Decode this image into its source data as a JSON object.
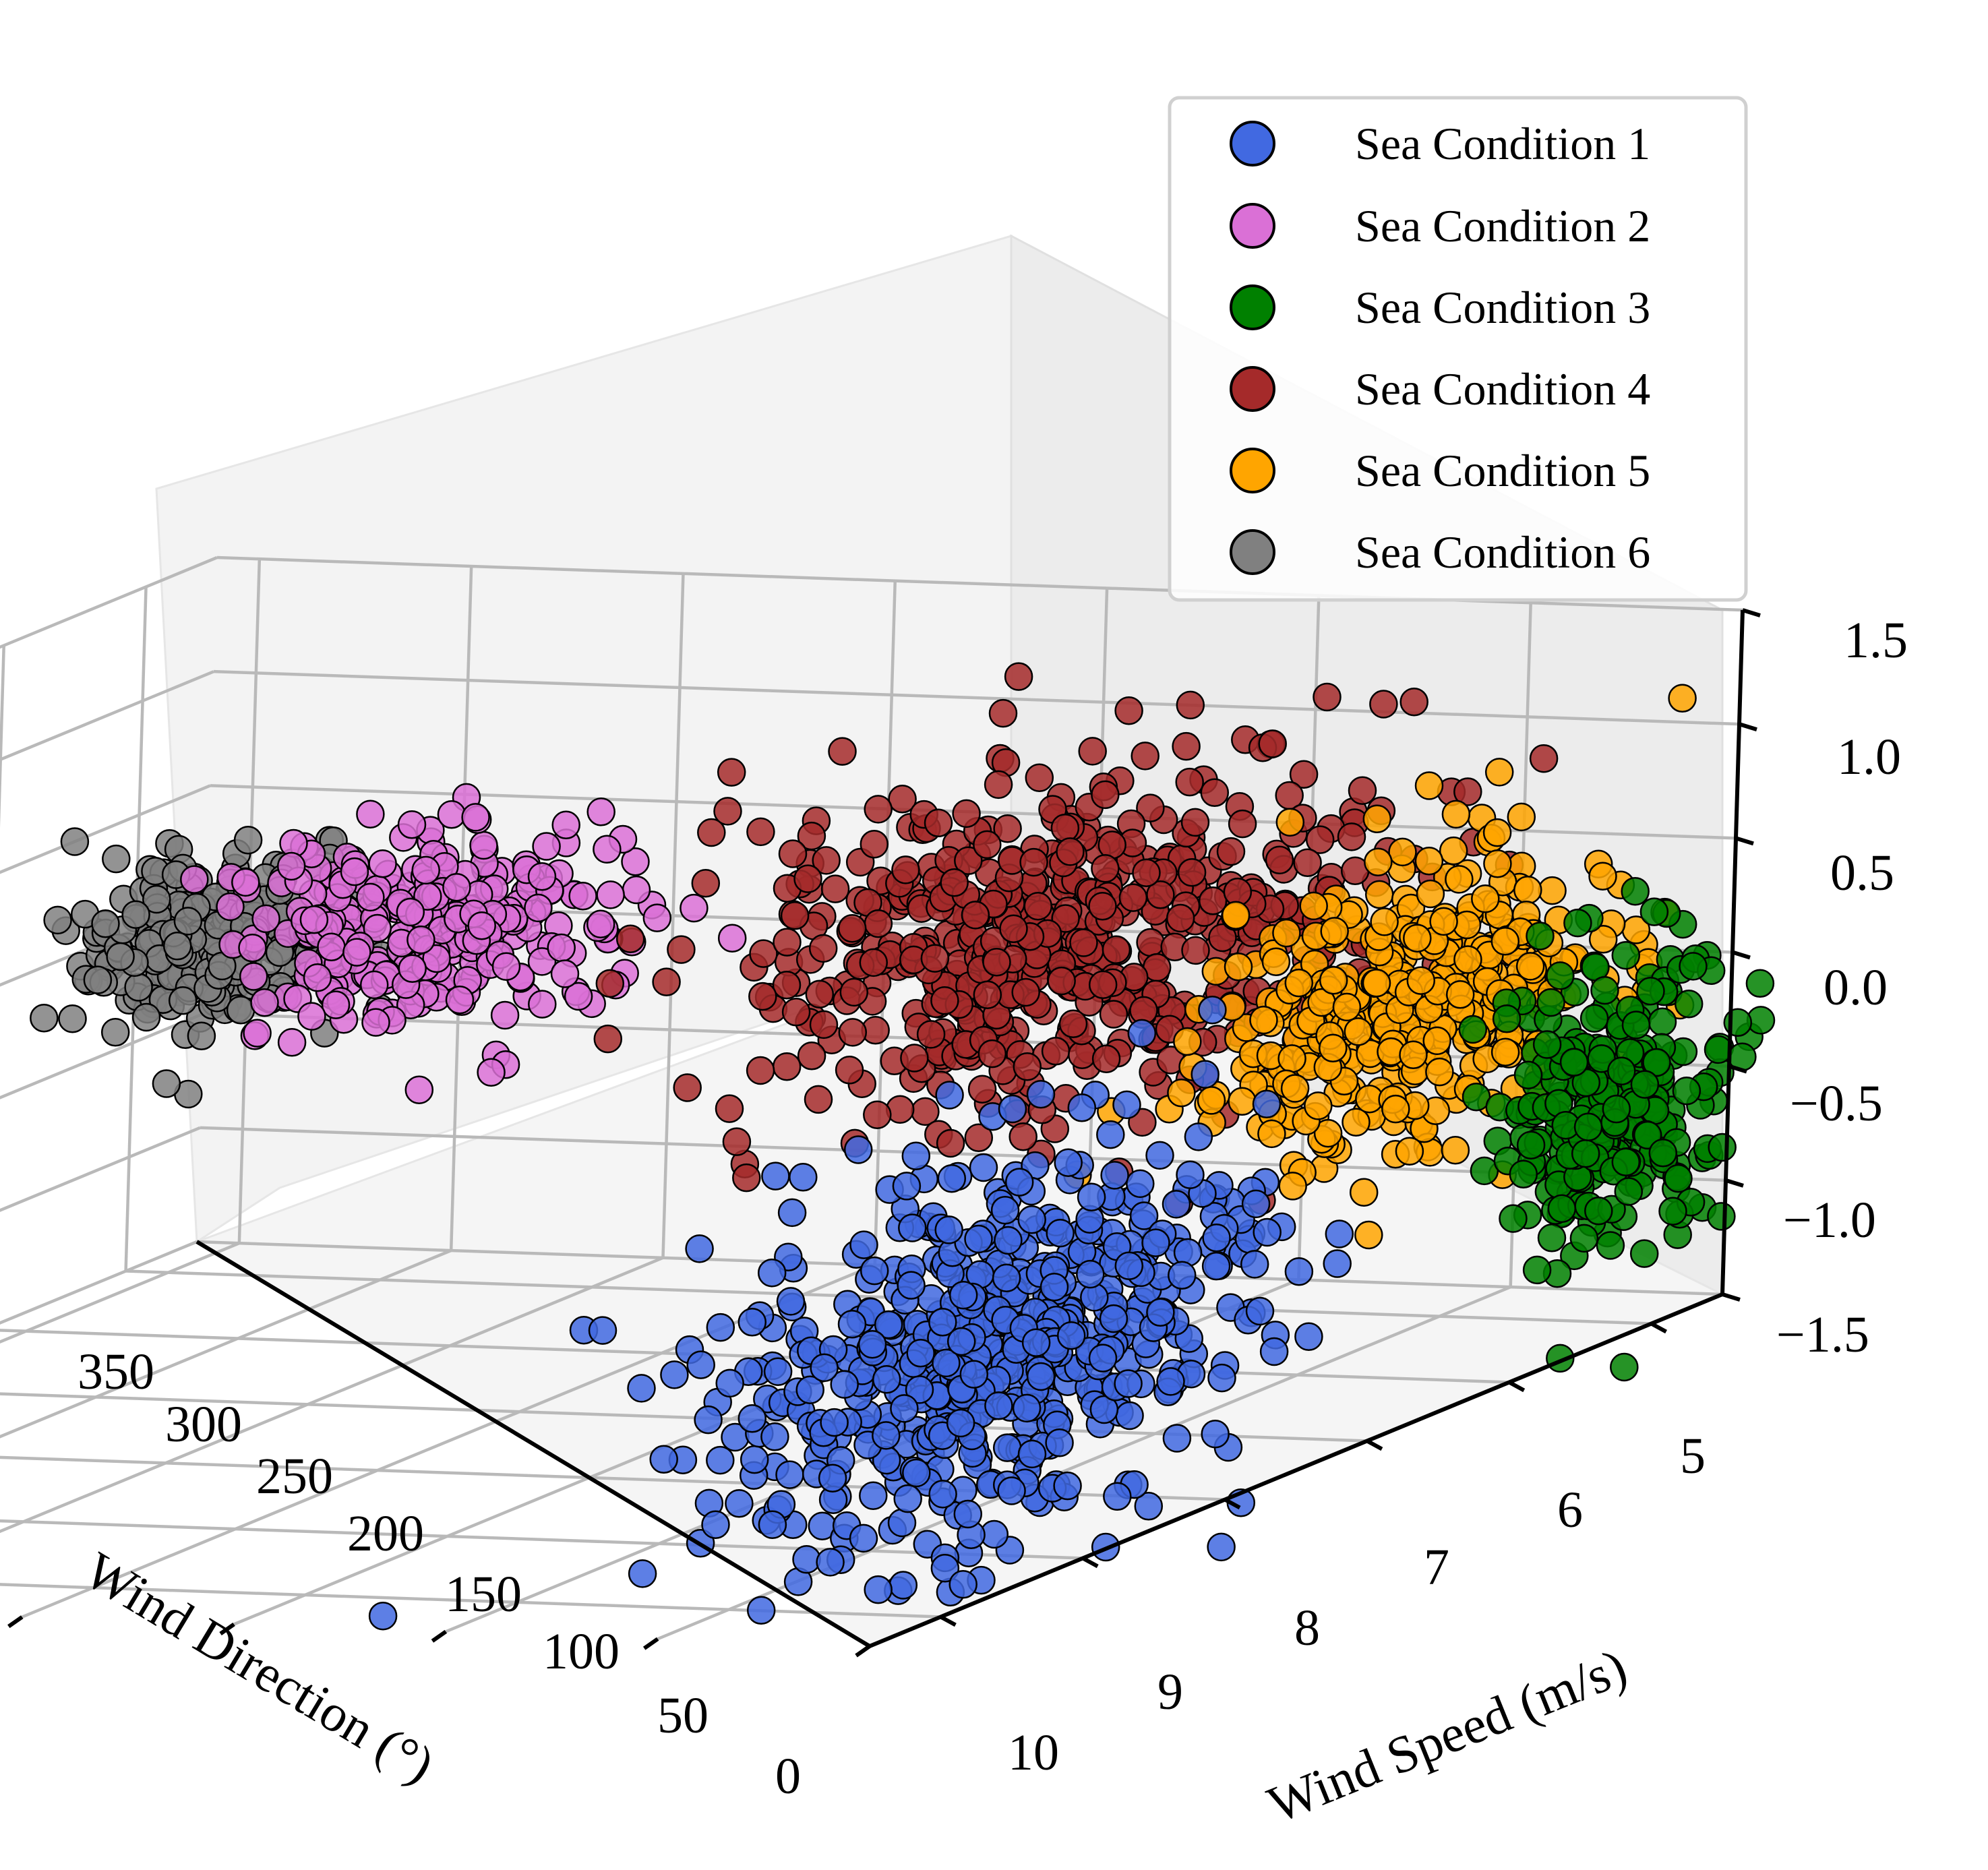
{
  "chart_data": {
    "type": "scatter",
    "projection": "3d",
    "xlabel": "Wind Direction (°)",
    "ylabel": "Wind Speed (m/s)",
    "zlabel": "",
    "x_ticks": [
      "0",
      "50",
      "100",
      "150",
      "200",
      "250",
      "300",
      "350"
    ],
    "y_ticks": [
      "5",
      "6",
      "7",
      "8",
      "9",
      "10"
    ],
    "z_ticks": [
      "1.5",
      "1.0",
      "0.5",
      "0.0",
      "−0.5",
      "−1.0",
      "−1.5"
    ],
    "xlim": [
      0,
      360
    ],
    "ylim": [
      4.5,
      10.5
    ],
    "zlim": [
      -1.5,
      1.5
    ],
    "grid": true,
    "legend_position": "top-right",
    "series": [
      {
        "name": "Sea Condition 1",
        "color": "#4169e1",
        "center": {
          "x": 20,
          "y": 9.0,
          "z": -0.6
        },
        "spread": {
          "x": 20,
          "y": 0.75,
          "z": 0.4
        },
        "count": 600
      },
      {
        "name": "Sea Condition 2",
        "color": "#da70d6",
        "center": {
          "x": 280,
          "y": 5.3,
          "z": 0.1
        },
        "spread": {
          "x": 20,
          "y": 0.3,
          "z": 0.2
        },
        "count": 320
      },
      {
        "name": "Sea Condition 3",
        "color": "#008000",
        "center": {
          "x": 10,
          "y": 5.0,
          "z": -0.55
        },
        "spread": {
          "x": 12,
          "y": 0.3,
          "z": 0.35
        },
        "count": 260
      },
      {
        "name": "Sea Condition 4",
        "color": "#a52a2a",
        "center": {
          "x": 85,
          "y": 6.7,
          "z": 0.55
        },
        "spread": {
          "x": 30,
          "y": 0.7,
          "z": 0.35
        },
        "count": 560
      },
      {
        "name": "Sea Condition 5",
        "color": "#ffa500",
        "center": {
          "x": 25,
          "y": 6.0,
          "z": 0.15
        },
        "spread": {
          "x": 15,
          "y": 0.55,
          "z": 0.3
        },
        "count": 420
      },
      {
        "name": "Sea Condition 6",
        "color": "#808080",
        "center": {
          "x": 335,
          "y": 5.2,
          "z": 0.0
        },
        "spread": {
          "x": 15,
          "y": 0.25,
          "z": 0.18
        },
        "count": 260
      }
    ]
  }
}
